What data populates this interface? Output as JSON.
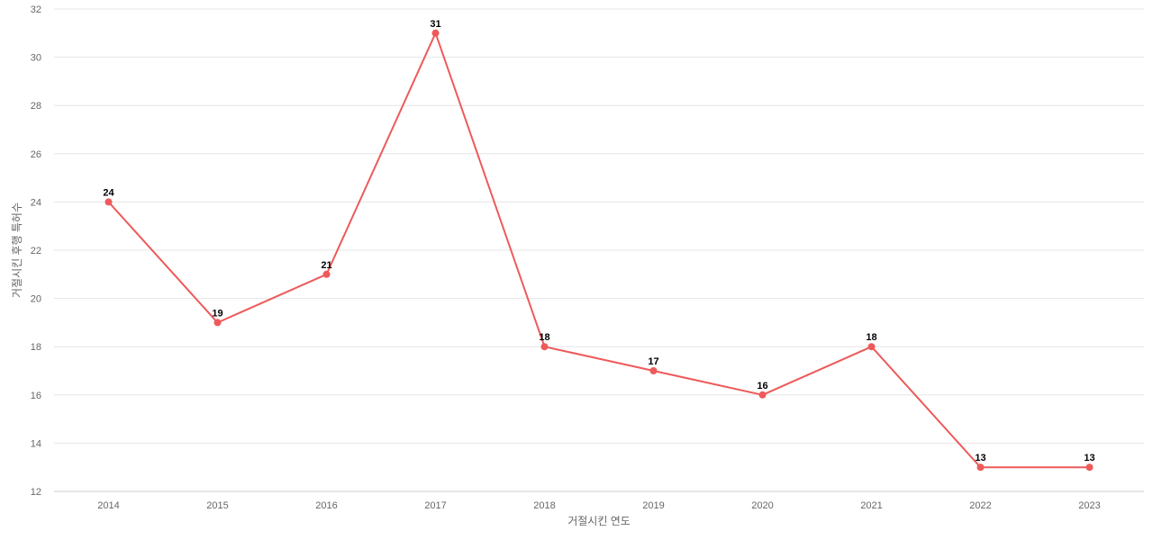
{
  "chart_data": {
    "type": "line",
    "title": "",
    "xlabel": "거절시킨 연도",
    "ylabel": "거절시킨 후행 특허수",
    "categories": [
      "2014",
      "2015",
      "2016",
      "2017",
      "2018",
      "2019",
      "2020",
      "2021",
      "2022",
      "2023"
    ],
    "series": [
      {
        "values": [
          24,
          19,
          21,
          31,
          18,
          17,
          16,
          18,
          13,
          13
        ],
        "color": "#ee5a5a"
      }
    ],
    "ylim": [
      12,
      32
    ],
    "yticks": [
      12,
      14,
      16,
      18,
      20,
      22,
      24,
      26,
      28,
      30,
      32
    ],
    "grid": true,
    "data_labels": true,
    "legend": "none"
  }
}
